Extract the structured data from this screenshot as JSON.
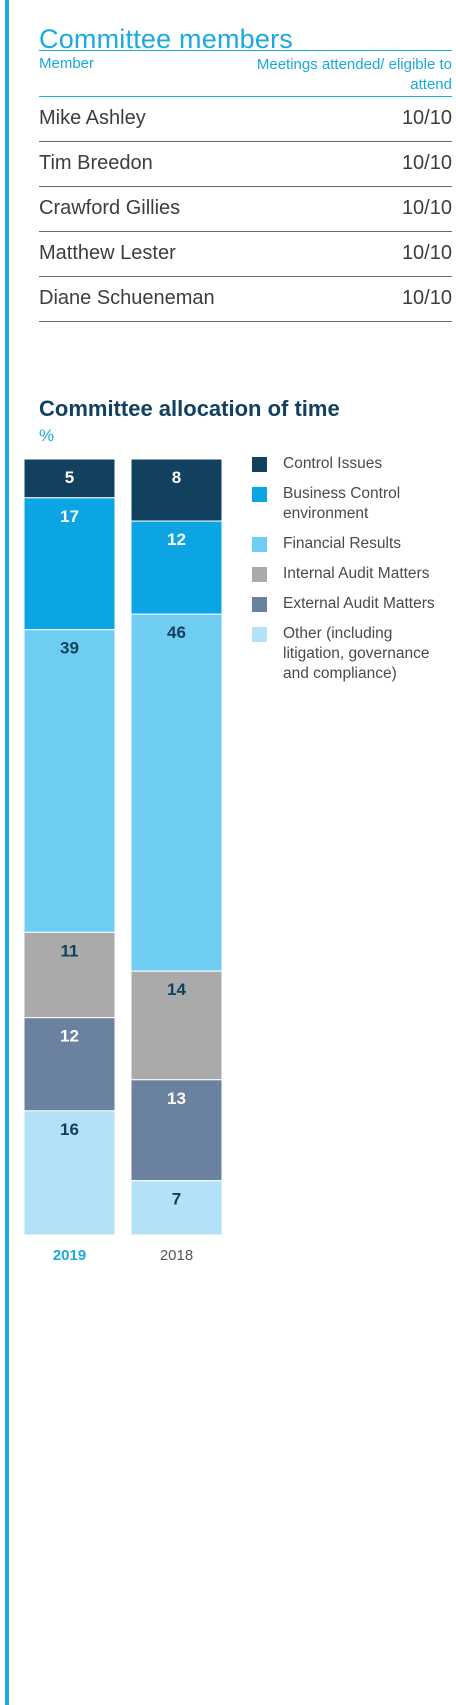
{
  "members": {
    "title": "Committee members",
    "col_member": "Member",
    "col_meetings": "Meetings attended/ eligible to attend",
    "rows": [
      {
        "name": "Mike Ashley",
        "meetings": "10/10"
      },
      {
        "name": "Tim Breedon",
        "meetings": "10/10"
      },
      {
        "name": "Crawford Gillies",
        "meetings": "10/10"
      },
      {
        "name": "Matthew Lester",
        "meetings": "10/10"
      },
      {
        "name": "Diane Schueneman",
        "meetings": "10/10"
      }
    ]
  },
  "chart_data": {
    "type": "bar",
    "stacked": true,
    "title": "Committee allocation of time",
    "unit": "%",
    "categories": [
      "2019",
      "2018"
    ],
    "highlight_category": "2019",
    "series": [
      {
        "name": "Control Issues",
        "values": [
          5,
          8
        ],
        "color": "#12415f",
        "label_color": "#ffffff"
      },
      {
        "name": "Business Control environment",
        "values": [
          17,
          12
        ],
        "color": "#0ca5e3",
        "label_color": "#ffffff"
      },
      {
        "name": "Financial Results",
        "values": [
          39,
          46
        ],
        "color": "#6fcdf2",
        "label_color": "#12415f"
      },
      {
        "name": "Internal Audit Matters",
        "values": [
          11,
          14
        ],
        "color": "#aaaaaa",
        "label_color": "#12415f"
      },
      {
        "name": "External Audit Matters",
        "values": [
          12,
          13
        ],
        "color": "#6a819f",
        "label_color": "#ffffff"
      },
      {
        "name": "Other (including litigation, governance and compliance)",
        "values": [
          16,
          7
        ],
        "color": "#b3e2f8",
        "label_color": "#12415f"
      }
    ],
    "legend_position": "right",
    "colors": {
      "highlight_tick": "#1aa9e0",
      "tick": "#555555"
    }
  }
}
